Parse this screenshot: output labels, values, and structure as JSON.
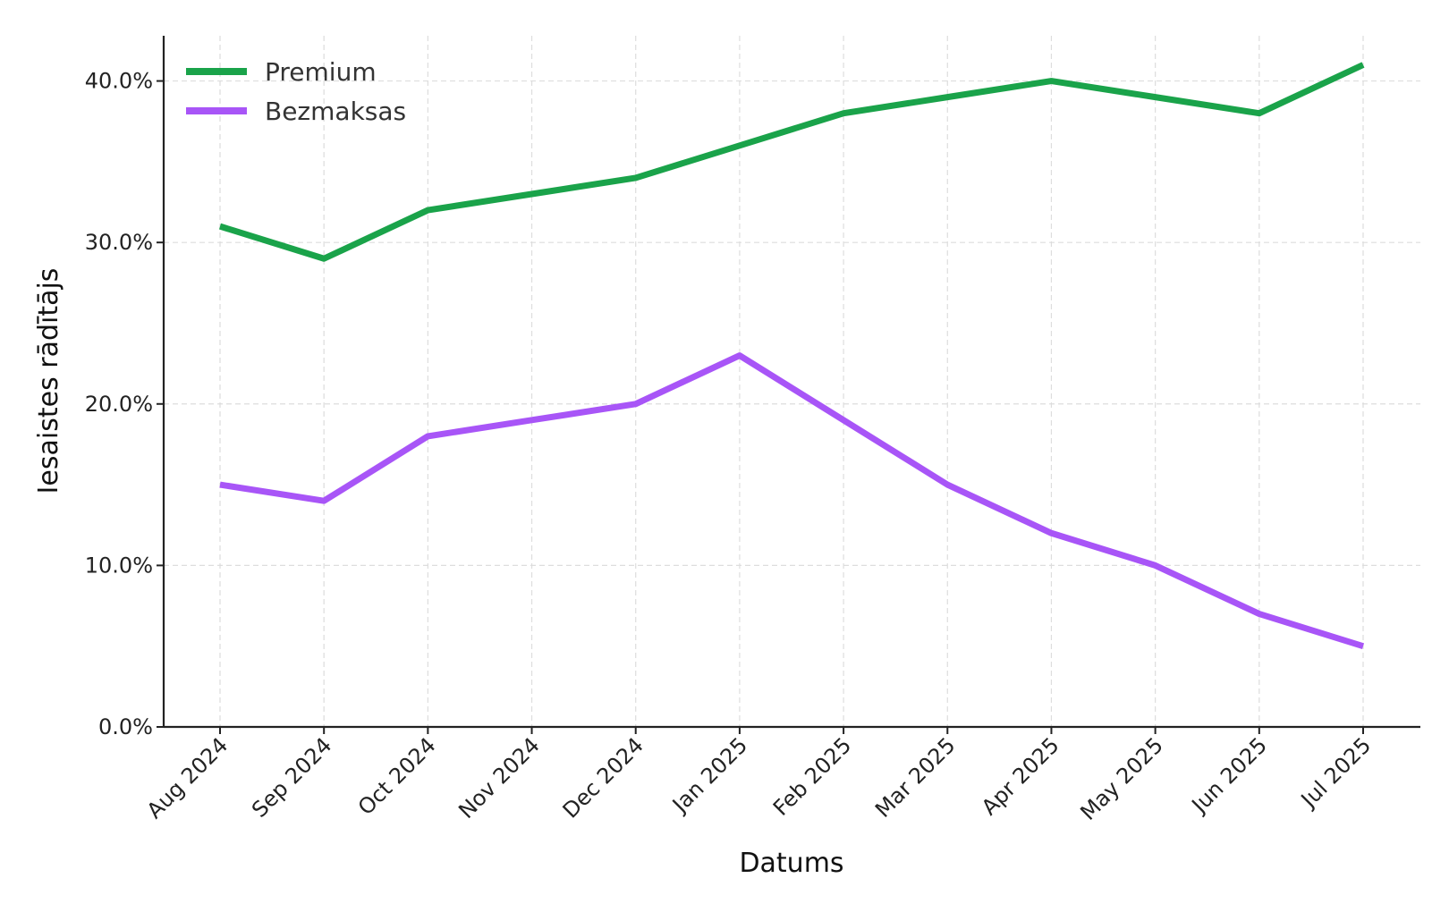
{
  "chart_data": {
    "type": "line",
    "title": "",
    "xlabel": "Datums",
    "ylabel": "Iesaistes rādītājs",
    "categories": [
      "Aug 2024",
      "Sep 2024",
      "Oct 2024",
      "Nov 2024",
      "Dec 2024",
      "Jan 2025",
      "Feb 2025",
      "Mar 2025",
      "Apr 2025",
      "May 2025",
      "Jun 2025",
      "Jul 2025"
    ],
    "series": [
      {
        "name": "Premium",
        "color": "#1aa34a",
        "values": [
          31.0,
          29.0,
          32.0,
          33.0,
          34.0,
          36.0,
          38.0,
          39.0,
          40.0,
          39.0,
          38.0,
          41.0
        ]
      },
      {
        "name": "Bezmaksas",
        "color": "#a855f7",
        "values": [
          15.0,
          14.0,
          18.0,
          19.0,
          20.0,
          23.0,
          19.0,
          15.0,
          12.0,
          10.0,
          7.0,
          5.0
        ]
      }
    ],
    "yticks": [
      "0.0%",
      "10.0%",
      "20.0%",
      "30.0%",
      "40.0%"
    ],
    "ytick_values": [
      0,
      10,
      20,
      30,
      40
    ],
    "ylim": [
      0,
      42.8
    ],
    "y_unit": "%",
    "grid": true,
    "legend_position": "top-left"
  }
}
